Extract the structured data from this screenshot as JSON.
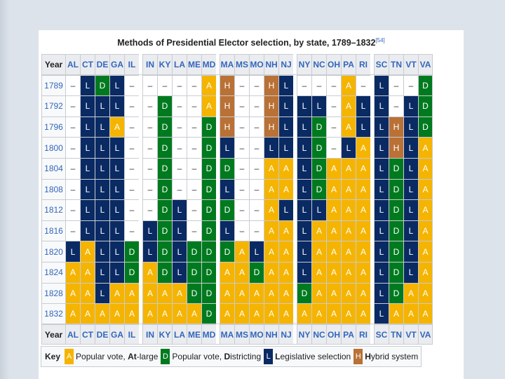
{
  "title": "Methods of Presidential Elector selection, by state, 1789–1832",
  "citation": "[54]",
  "header_label": "Year",
  "groups": [
    [
      "AL",
      "CT",
      "DE",
      "GA",
      "IL"
    ],
    [
      "IN",
      "KY",
      "LA",
      "ME",
      "MD"
    ],
    [
      "MA",
      "MS",
      "MO",
      "NH",
      "NJ"
    ],
    [
      "NY",
      "NC",
      "OH",
      "PA",
      "RI"
    ],
    [
      "SC",
      "TN",
      "VT",
      "VA"
    ]
  ],
  "rows": [
    {
      "year": "1789",
      "cells": [
        "–",
        "L",
        "D",
        "L",
        "–",
        "–",
        "–",
        "–",
        "–",
        "A",
        "H",
        "–",
        "–",
        "H",
        "L",
        "–",
        "–",
        "–",
        "A",
        "–",
        "L",
        "–",
        "–",
        "D"
      ]
    },
    {
      "year": "1792",
      "cells": [
        "–",
        "L",
        "L",
        "L",
        "–",
        "–",
        "D",
        "–",
        "–",
        "A",
        "H",
        "–",
        "–",
        "H",
        "L",
        "L",
        "L",
        "–",
        "A",
        "L",
        "L",
        "–",
        "L",
        "D"
      ]
    },
    {
      "year": "1796",
      "cells": [
        "–",
        "L",
        "L",
        "A",
        "–",
        "–",
        "D",
        "–",
        "–",
        "D",
        "H",
        "–",
        "–",
        "H",
        "L",
        "L",
        "D",
        "–",
        "A",
        "L",
        "L",
        "H",
        "L",
        "D"
      ]
    },
    {
      "year": "1800",
      "cells": [
        "–",
        "L",
        "L",
        "L",
        "–",
        "–",
        "D",
        "–",
        "–",
        "D",
        "L",
        "–",
        "–",
        "L",
        "L",
        "L",
        "D",
        "–",
        "L",
        "A",
        "L",
        "H",
        "L",
        "A"
      ]
    },
    {
      "year": "1804",
      "cells": [
        "–",
        "L",
        "L",
        "L",
        "–",
        "–",
        "D",
        "–",
        "–",
        "D",
        "D",
        "–",
        "–",
        "A",
        "A",
        "L",
        "D",
        "A",
        "A",
        "A",
        "L",
        "D",
        "L",
        "A"
      ]
    },
    {
      "year": "1808",
      "cells": [
        "–",
        "L",
        "L",
        "L",
        "–",
        "–",
        "D",
        "–",
        "–",
        "D",
        "L",
        "–",
        "–",
        "A",
        "A",
        "L",
        "D",
        "A",
        "A",
        "A",
        "L",
        "D",
        "L",
        "A"
      ]
    },
    {
      "year": "1812",
      "cells": [
        "–",
        "L",
        "L",
        "L",
        "–",
        "–",
        "D",
        "L",
        "–",
        "D",
        "D",
        "–",
        "–",
        "A",
        "L",
        "L",
        "L",
        "A",
        "A",
        "A",
        "L",
        "D",
        "L",
        "A"
      ]
    },
    {
      "year": "1816",
      "cells": [
        "–",
        "L",
        "L",
        "L",
        "–",
        "L",
        "D",
        "L",
        "–",
        "D",
        "L",
        "–",
        "–",
        "A",
        "A",
        "L",
        "A",
        "A",
        "A",
        "A",
        "L",
        "D",
        "L",
        "A"
      ]
    },
    {
      "year": "1820",
      "cells": [
        "L",
        "A",
        "L",
        "L",
        "D",
        "L",
        "D",
        "L",
        "D",
        "D",
        "D",
        "A",
        "L",
        "A",
        "A",
        "L",
        "A",
        "A",
        "A",
        "A",
        "L",
        "D",
        "L",
        "A"
      ]
    },
    {
      "year": "1824",
      "cells": [
        "A",
        "A",
        "L",
        "L",
        "D",
        "A",
        "D",
        "L",
        "D",
        "D",
        "A",
        "A",
        "D",
        "A",
        "A",
        "L",
        "A",
        "A",
        "A",
        "A",
        "L",
        "D",
        "L",
        "A"
      ]
    },
    {
      "year": "1828",
      "cells": [
        "A",
        "A",
        "L",
        "A",
        "A",
        "A",
        "A",
        "A",
        "D",
        "D",
        "A",
        "A",
        "A",
        "A",
        "A",
        "D",
        "A",
        "A",
        "A",
        "A",
        "L",
        "D",
        "A",
        "A"
      ]
    },
    {
      "year": "1832",
      "cells": [
        "A",
        "A",
        "A",
        "A",
        "A",
        "A",
        "A",
        "A",
        "A",
        "D",
        "A",
        "A",
        "A",
        "A",
        "A",
        "A",
        "A",
        "A",
        "A",
        "A",
        "L",
        "A",
        "A",
        "A"
      ]
    }
  ],
  "key": {
    "label": "Key",
    "items": [
      {
        "code": "A",
        "pre": "Popular vote, ",
        "bold": "At",
        "post": "-large"
      },
      {
        "code": "D",
        "pre": "Popular vote, ",
        "bold": "D",
        "post": "istricting"
      },
      {
        "code": "L",
        "pre": "",
        "bold": "L",
        "post": "egislative selection"
      },
      {
        "code": "H",
        "pre": "",
        "bold": "H",
        "post": "ybrid system"
      }
    ]
  },
  "colors": {
    "A": "#f5b400",
    "D": "#007a1f",
    "L": "#0a2a63",
    "H": "#b97136"
  }
}
